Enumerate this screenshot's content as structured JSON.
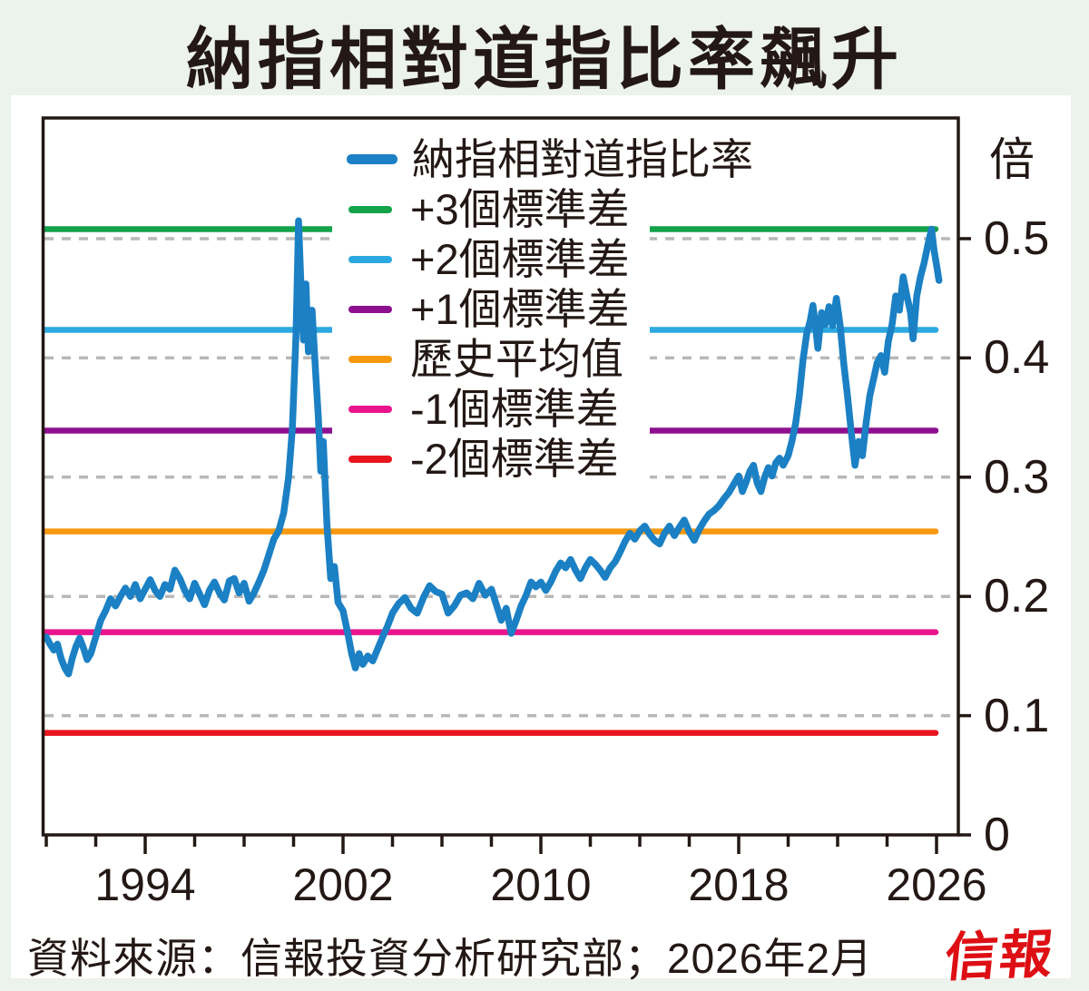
{
  "title": "納指相對道指比率飆升",
  "source_note": "資料來源：信報投資分析研究部；2026年2月",
  "publisher_logo": "信報",
  "colors": {
    "background": "#ecf2ec",
    "panel": "#ffffff",
    "ink": "#231815",
    "grid": "#b8b8b8",
    "ratio_line": "#1b80c4",
    "plus3sd": "#14a24a",
    "plus2sd": "#2da9e1",
    "plus1sd": "#8d0f8f",
    "mean": "#f7990f",
    "minus1sd": "#e9148d",
    "minus2sd": "#e8141e",
    "logo_red": "#dd0f14"
  },
  "legend": [
    {
      "label": "納指相對道指比率",
      "color": "#1b80c4",
      "main": true
    },
    {
      "label": "+3個標準差",
      "color": "#14a24a",
      "main": false
    },
    {
      "label": "+2個標準差",
      "color": "#2da9e1",
      "main": false
    },
    {
      "label": "+1個標準差",
      "color": "#8d0f8f",
      "main": false
    },
    {
      "label": "歷史平均值",
      "color": "#f7990f",
      "main": false
    },
    {
      "label": "-1個標準差",
      "color": "#e9148d",
      "main": false
    },
    {
      "label": "-2個標準差",
      "color": "#e8141e",
      "main": false
    }
  ],
  "chart_data": {
    "type": "line",
    "title": "納指相對道指比率飆升",
    "xlabel": "",
    "ylabel": "倍",
    "x_axis": {
      "range": [
        1990,
        2027.2
      ],
      "major_ticks": [
        1994,
        2002,
        2010,
        2018,
        2026
      ],
      "minor_tick_step_years": 2
    },
    "y_axis": {
      "unit": "倍",
      "range": [
        0,
        0.602
      ],
      "ticks": [
        0,
        0.1,
        0.2,
        0.3,
        0.4,
        0.5
      ],
      "tick_labels": [
        "0",
        "0.1",
        "0.2",
        "0.3",
        "0.4",
        "0.5"
      ],
      "grid": "dashed"
    },
    "legend_position": "top-left-inside",
    "reference_lines": [
      {
        "label": "+3個標準差",
        "value": 0.508,
        "color": "#14a24a"
      },
      {
        "label": "+2個標準差",
        "value": 0.4235,
        "color": "#2da9e1"
      },
      {
        "label": "+1個標準差",
        "value": 0.339,
        "color": "#8d0f8f"
      },
      {
        "label": "歷史平均值",
        "value": 0.2545,
        "color": "#f7990f"
      },
      {
        "label": "-1個標準差",
        "value": 0.17,
        "color": "#e9148d"
      },
      {
        "label": "-2個標準差",
        "value": 0.0855,
        "color": "#e8141e"
      }
    ],
    "statistics": {
      "historical_mean": 0.2545,
      "standard_deviation": 0.0845
    },
    "series": [
      {
        "name": "納指相對道指比率",
        "color": "#1b80c4",
        "points": [
          [
            1990.0,
            0.166
          ],
          [
            1990.15,
            0.16
          ],
          [
            1990.3,
            0.155
          ],
          [
            1990.45,
            0.16
          ],
          [
            1990.6,
            0.148
          ],
          [
            1990.75,
            0.14
          ],
          [
            1990.9,
            0.135
          ],
          [
            1991.05,
            0.148
          ],
          [
            1991.2,
            0.158
          ],
          [
            1991.35,
            0.165
          ],
          [
            1991.5,
            0.157
          ],
          [
            1991.65,
            0.147
          ],
          [
            1991.8,
            0.152
          ],
          [
            1992.0,
            0.166
          ],
          [
            1992.2,
            0.18
          ],
          [
            1992.4,
            0.188
          ],
          [
            1992.6,
            0.198
          ],
          [
            1992.8,
            0.192
          ],
          [
            1993.0,
            0.2
          ],
          [
            1993.2,
            0.207
          ],
          [
            1993.4,
            0.2
          ],
          [
            1993.6,
            0.21
          ],
          [
            1993.8,
            0.198
          ],
          [
            1994.0,
            0.206
          ],
          [
            1994.2,
            0.214
          ],
          [
            1994.4,
            0.205
          ],
          [
            1994.6,
            0.2
          ],
          [
            1994.8,
            0.21
          ],
          [
            1995.0,
            0.206
          ],
          [
            1995.2,
            0.222
          ],
          [
            1995.4,
            0.215
          ],
          [
            1995.6,
            0.205
          ],
          [
            1995.8,
            0.198
          ],
          [
            1996.0,
            0.211
          ],
          [
            1996.2,
            0.202
          ],
          [
            1996.4,
            0.193
          ],
          [
            1996.6,
            0.205
          ],
          [
            1996.8,
            0.212
          ],
          [
            1997.0,
            0.203
          ],
          [
            1997.2,
            0.197
          ],
          [
            1997.4,
            0.213
          ],
          [
            1997.6,
            0.215
          ],
          [
            1997.8,
            0.203
          ],
          [
            1998.0,
            0.211
          ],
          [
            1998.2,
            0.196
          ],
          [
            1998.4,
            0.203
          ],
          [
            1998.6,
            0.212
          ],
          [
            1998.8,
            0.222
          ],
          [
            1999.0,
            0.235
          ],
          [
            1999.2,
            0.248
          ],
          [
            1999.4,
            0.255
          ],
          [
            1999.6,
            0.27
          ],
          [
            1999.8,
            0.3
          ],
          [
            1999.95,
            0.34
          ],
          [
            2000.1,
            0.42
          ],
          [
            2000.2,
            0.515
          ],
          [
            2000.3,
            0.46
          ],
          [
            2000.4,
            0.415
          ],
          [
            2000.5,
            0.462
          ],
          [
            2000.6,
            0.405
          ],
          [
            2000.75,
            0.44
          ],
          [
            2000.9,
            0.385
          ],
          [
            2001.0,
            0.35
          ],
          [
            2001.1,
            0.305
          ],
          [
            2001.2,
            0.33
          ],
          [
            2001.35,
            0.26
          ],
          [
            2001.5,
            0.215
          ],
          [
            2001.65,
            0.225
          ],
          [
            2001.8,
            0.195
          ],
          [
            2002.0,
            0.188
          ],
          [
            2002.2,
            0.168
          ],
          [
            2002.35,
            0.152
          ],
          [
            2002.5,
            0.14
          ],
          [
            2002.65,
            0.152
          ],
          [
            2002.8,
            0.143
          ],
          [
            2003.0,
            0.15
          ],
          [
            2003.2,
            0.146
          ],
          [
            2003.4,
            0.156
          ],
          [
            2003.6,
            0.166
          ],
          [
            2003.8,
            0.175
          ],
          [
            2004.0,
            0.186
          ],
          [
            2004.25,
            0.194
          ],
          [
            2004.5,
            0.199
          ],
          [
            2004.75,
            0.19
          ],
          [
            2005.0,
            0.186
          ],
          [
            2005.25,
            0.199
          ],
          [
            2005.5,
            0.209
          ],
          [
            2005.75,
            0.204
          ],
          [
            2006.0,
            0.202
          ],
          [
            2006.25,
            0.186
          ],
          [
            2006.5,
            0.192
          ],
          [
            2006.75,
            0.201
          ],
          [
            2007.0,
            0.203
          ],
          [
            2007.25,
            0.198
          ],
          [
            2007.5,
            0.211
          ],
          [
            2007.75,
            0.201
          ],
          [
            2008.0,
            0.206
          ],
          [
            2008.2,
            0.193
          ],
          [
            2008.4,
            0.18
          ],
          [
            2008.6,
            0.19
          ],
          [
            2008.8,
            0.169
          ],
          [
            2009.0,
            0.18
          ],
          [
            2009.2,
            0.192
          ],
          [
            2009.4,
            0.201
          ],
          [
            2009.6,
            0.212
          ],
          [
            2009.8,
            0.208
          ],
          [
            2010.0,
            0.212
          ],
          [
            2010.2,
            0.205
          ],
          [
            2010.4,
            0.212
          ],
          [
            2010.6,
            0.221
          ],
          [
            2010.8,
            0.228
          ],
          [
            2011.0,
            0.224
          ],
          [
            2011.2,
            0.231
          ],
          [
            2011.4,
            0.222
          ],
          [
            2011.6,
            0.215
          ],
          [
            2011.8,
            0.224
          ],
          [
            2012.0,
            0.231
          ],
          [
            2012.2,
            0.227
          ],
          [
            2012.4,
            0.222
          ],
          [
            2012.6,
            0.216
          ],
          [
            2012.8,
            0.224
          ],
          [
            2013.0,
            0.229
          ],
          [
            2013.2,
            0.237
          ],
          [
            2013.4,
            0.246
          ],
          [
            2013.6,
            0.253
          ],
          [
            2013.8,
            0.248
          ],
          [
            2014.0,
            0.255
          ],
          [
            2014.2,
            0.259
          ],
          [
            2014.4,
            0.252
          ],
          [
            2014.6,
            0.247
          ],
          [
            2014.8,
            0.244
          ],
          [
            2015.0,
            0.253
          ],
          [
            2015.2,
            0.259
          ],
          [
            2015.4,
            0.251
          ],
          [
            2015.6,
            0.258
          ],
          [
            2015.8,
            0.264
          ],
          [
            2016.0,
            0.254
          ],
          [
            2016.2,
            0.247
          ],
          [
            2016.4,
            0.256
          ],
          [
            2016.6,
            0.263
          ],
          [
            2016.8,
            0.269
          ],
          [
            2017.0,
            0.272
          ],
          [
            2017.2,
            0.276
          ],
          [
            2017.4,
            0.282
          ],
          [
            2017.6,
            0.287
          ],
          [
            2017.8,
            0.294
          ],
          [
            2018.0,
            0.301
          ],
          [
            2018.15,
            0.288
          ],
          [
            2018.3,
            0.296
          ],
          [
            2018.45,
            0.305
          ],
          [
            2018.6,
            0.31
          ],
          [
            2018.75,
            0.295
          ],
          [
            2018.9,
            0.288
          ],
          [
            2019.05,
            0.3
          ],
          [
            2019.2,
            0.308
          ],
          [
            2019.35,
            0.301
          ],
          [
            2019.5,
            0.312
          ],
          [
            2019.65,
            0.316
          ],
          [
            2019.8,
            0.31
          ],
          [
            2020.0,
            0.318
          ],
          [
            2020.15,
            0.33
          ],
          [
            2020.3,
            0.345
          ],
          [
            2020.45,
            0.368
          ],
          [
            2020.6,
            0.398
          ],
          [
            2020.75,
            0.42
          ],
          [
            2020.9,
            0.432
          ],
          [
            2021.0,
            0.444
          ],
          [
            2021.1,
            0.428
          ],
          [
            2021.2,
            0.408
          ],
          [
            2021.35,
            0.438
          ],
          [
            2021.5,
            0.428
          ],
          [
            2021.65,
            0.443
          ],
          [
            2021.8,
            0.427
          ],
          [
            2021.95,
            0.45
          ],
          [
            2022.1,
            0.428
          ],
          [
            2022.25,
            0.395
          ],
          [
            2022.4,
            0.368
          ],
          [
            2022.55,
            0.338
          ],
          [
            2022.7,
            0.31
          ],
          [
            2022.85,
            0.33
          ],
          [
            2023.0,
            0.318
          ],
          [
            2023.15,
            0.345
          ],
          [
            2023.3,
            0.368
          ],
          [
            2023.45,
            0.382
          ],
          [
            2023.6,
            0.396
          ],
          [
            2023.75,
            0.402
          ],
          [
            2023.9,
            0.388
          ],
          [
            2024.05,
            0.414
          ],
          [
            2024.2,
            0.428
          ],
          [
            2024.35,
            0.452
          ],
          [
            2024.5,
            0.44
          ],
          [
            2024.65,
            0.468
          ],
          [
            2024.8,
            0.452
          ],
          [
            2024.95,
            0.438
          ],
          [
            2025.05,
            0.416
          ],
          [
            2025.2,
            0.452
          ],
          [
            2025.35,
            0.468
          ],
          [
            2025.5,
            0.48
          ],
          [
            2025.65,
            0.495
          ],
          [
            2025.8,
            0.508
          ],
          [
            2025.9,
            0.49
          ],
          [
            2026.0,
            0.478
          ],
          [
            2026.1,
            0.465
          ]
        ]
      }
    ]
  }
}
